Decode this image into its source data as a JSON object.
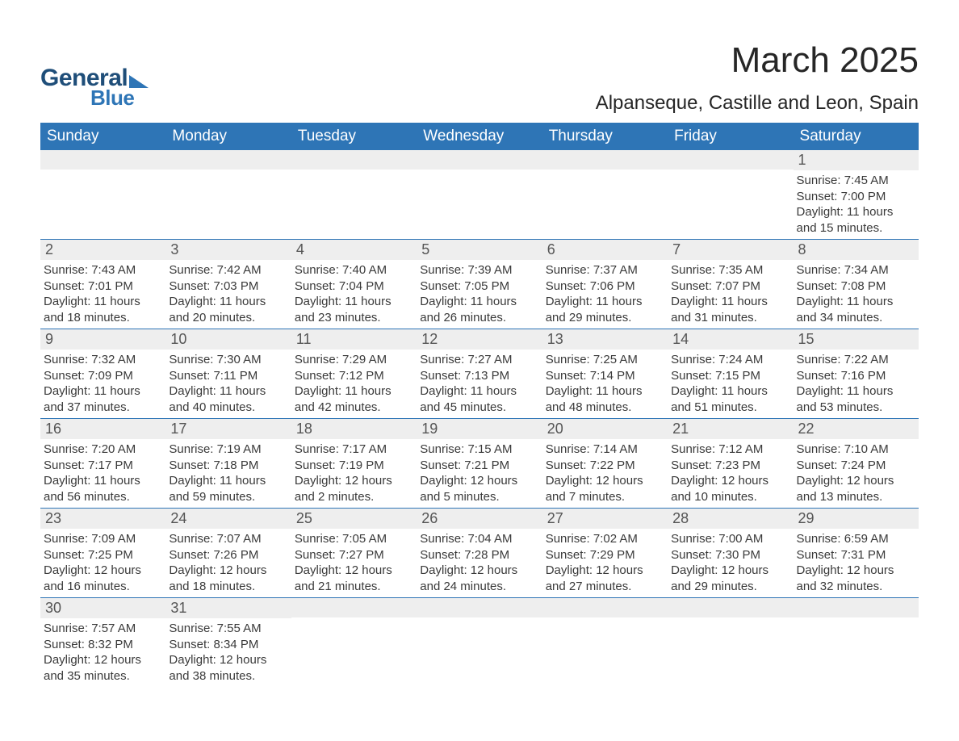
{
  "brand": {
    "general": "General",
    "blue": "Blue"
  },
  "title": "March 2025",
  "location": "Alpanseque, Castille and Leon, Spain",
  "headers": [
    "Sunday",
    "Monday",
    "Tuesday",
    "Wednesday",
    "Thursday",
    "Friday",
    "Saturday"
  ],
  "colors": {
    "header_bg": "#2e75b6",
    "header_text": "#ffffff",
    "daynum_bg": "#eeeeee",
    "row_border": "#2e75b6",
    "logo_dark": "#1f4e79",
    "logo_light": "#2e75b6",
    "body_text": "#3a3a3a",
    "title_text": "#262626",
    "background": "#ffffff"
  },
  "typography": {
    "title_fontsize": 44,
    "location_fontsize": 24,
    "header_fontsize": 19,
    "daynum_fontsize": 18,
    "content_fontsize": 15
  },
  "layout": {
    "columns": 7,
    "rows": 6,
    "cell_border_bottom": true
  },
  "weeks": [
    [
      {
        "n": "",
        "sunrise": "",
        "sunset": "",
        "daylight": ""
      },
      {
        "n": "",
        "sunrise": "",
        "sunset": "",
        "daylight": ""
      },
      {
        "n": "",
        "sunrise": "",
        "sunset": "",
        "daylight": ""
      },
      {
        "n": "",
        "sunrise": "",
        "sunset": "",
        "daylight": ""
      },
      {
        "n": "",
        "sunrise": "",
        "sunset": "",
        "daylight": ""
      },
      {
        "n": "",
        "sunrise": "",
        "sunset": "",
        "daylight": ""
      },
      {
        "n": "1",
        "sunrise": "Sunrise: 7:45 AM",
        "sunset": "Sunset: 7:00 PM",
        "daylight": "Daylight: 11 hours and 15 minutes."
      }
    ],
    [
      {
        "n": "2",
        "sunrise": "Sunrise: 7:43 AM",
        "sunset": "Sunset: 7:01 PM",
        "daylight": "Daylight: 11 hours and 18 minutes."
      },
      {
        "n": "3",
        "sunrise": "Sunrise: 7:42 AM",
        "sunset": "Sunset: 7:03 PM",
        "daylight": "Daylight: 11 hours and 20 minutes."
      },
      {
        "n": "4",
        "sunrise": "Sunrise: 7:40 AM",
        "sunset": "Sunset: 7:04 PM",
        "daylight": "Daylight: 11 hours and 23 minutes."
      },
      {
        "n": "5",
        "sunrise": "Sunrise: 7:39 AM",
        "sunset": "Sunset: 7:05 PM",
        "daylight": "Daylight: 11 hours and 26 minutes."
      },
      {
        "n": "6",
        "sunrise": "Sunrise: 7:37 AM",
        "sunset": "Sunset: 7:06 PM",
        "daylight": "Daylight: 11 hours and 29 minutes."
      },
      {
        "n": "7",
        "sunrise": "Sunrise: 7:35 AM",
        "sunset": "Sunset: 7:07 PM",
        "daylight": "Daylight: 11 hours and 31 minutes."
      },
      {
        "n": "8",
        "sunrise": "Sunrise: 7:34 AM",
        "sunset": "Sunset: 7:08 PM",
        "daylight": "Daylight: 11 hours and 34 minutes."
      }
    ],
    [
      {
        "n": "9",
        "sunrise": "Sunrise: 7:32 AM",
        "sunset": "Sunset: 7:09 PM",
        "daylight": "Daylight: 11 hours and 37 minutes."
      },
      {
        "n": "10",
        "sunrise": "Sunrise: 7:30 AM",
        "sunset": "Sunset: 7:11 PM",
        "daylight": "Daylight: 11 hours and 40 minutes."
      },
      {
        "n": "11",
        "sunrise": "Sunrise: 7:29 AM",
        "sunset": "Sunset: 7:12 PM",
        "daylight": "Daylight: 11 hours and 42 minutes."
      },
      {
        "n": "12",
        "sunrise": "Sunrise: 7:27 AM",
        "sunset": "Sunset: 7:13 PM",
        "daylight": "Daylight: 11 hours and 45 minutes."
      },
      {
        "n": "13",
        "sunrise": "Sunrise: 7:25 AM",
        "sunset": "Sunset: 7:14 PM",
        "daylight": "Daylight: 11 hours and 48 minutes."
      },
      {
        "n": "14",
        "sunrise": "Sunrise: 7:24 AM",
        "sunset": "Sunset: 7:15 PM",
        "daylight": "Daylight: 11 hours and 51 minutes."
      },
      {
        "n": "15",
        "sunrise": "Sunrise: 7:22 AM",
        "sunset": "Sunset: 7:16 PM",
        "daylight": "Daylight: 11 hours and 53 minutes."
      }
    ],
    [
      {
        "n": "16",
        "sunrise": "Sunrise: 7:20 AM",
        "sunset": "Sunset: 7:17 PM",
        "daylight": "Daylight: 11 hours and 56 minutes."
      },
      {
        "n": "17",
        "sunrise": "Sunrise: 7:19 AM",
        "sunset": "Sunset: 7:18 PM",
        "daylight": "Daylight: 11 hours and 59 minutes."
      },
      {
        "n": "18",
        "sunrise": "Sunrise: 7:17 AM",
        "sunset": "Sunset: 7:19 PM",
        "daylight": "Daylight: 12 hours and 2 minutes."
      },
      {
        "n": "19",
        "sunrise": "Sunrise: 7:15 AM",
        "sunset": "Sunset: 7:21 PM",
        "daylight": "Daylight: 12 hours and 5 minutes."
      },
      {
        "n": "20",
        "sunrise": "Sunrise: 7:14 AM",
        "sunset": "Sunset: 7:22 PM",
        "daylight": "Daylight: 12 hours and 7 minutes."
      },
      {
        "n": "21",
        "sunrise": "Sunrise: 7:12 AM",
        "sunset": "Sunset: 7:23 PM",
        "daylight": "Daylight: 12 hours and 10 minutes."
      },
      {
        "n": "22",
        "sunrise": "Sunrise: 7:10 AM",
        "sunset": "Sunset: 7:24 PM",
        "daylight": "Daylight: 12 hours and 13 minutes."
      }
    ],
    [
      {
        "n": "23",
        "sunrise": "Sunrise: 7:09 AM",
        "sunset": "Sunset: 7:25 PM",
        "daylight": "Daylight: 12 hours and 16 minutes."
      },
      {
        "n": "24",
        "sunrise": "Sunrise: 7:07 AM",
        "sunset": "Sunset: 7:26 PM",
        "daylight": "Daylight: 12 hours and 18 minutes."
      },
      {
        "n": "25",
        "sunrise": "Sunrise: 7:05 AM",
        "sunset": "Sunset: 7:27 PM",
        "daylight": "Daylight: 12 hours and 21 minutes."
      },
      {
        "n": "26",
        "sunrise": "Sunrise: 7:04 AM",
        "sunset": "Sunset: 7:28 PM",
        "daylight": "Daylight: 12 hours and 24 minutes."
      },
      {
        "n": "27",
        "sunrise": "Sunrise: 7:02 AM",
        "sunset": "Sunset: 7:29 PM",
        "daylight": "Daylight: 12 hours and 27 minutes."
      },
      {
        "n": "28",
        "sunrise": "Sunrise: 7:00 AM",
        "sunset": "Sunset: 7:30 PM",
        "daylight": "Daylight: 12 hours and 29 minutes."
      },
      {
        "n": "29",
        "sunrise": "Sunrise: 6:59 AM",
        "sunset": "Sunset: 7:31 PM",
        "daylight": "Daylight: 12 hours and 32 minutes."
      }
    ],
    [
      {
        "n": "30",
        "sunrise": "Sunrise: 7:57 AM",
        "sunset": "Sunset: 8:32 PM",
        "daylight": "Daylight: 12 hours and 35 minutes."
      },
      {
        "n": "31",
        "sunrise": "Sunrise: 7:55 AM",
        "sunset": "Sunset: 8:34 PM",
        "daylight": "Daylight: 12 hours and 38 minutes."
      },
      {
        "n": "",
        "sunrise": "",
        "sunset": "",
        "daylight": ""
      },
      {
        "n": "",
        "sunrise": "",
        "sunset": "",
        "daylight": ""
      },
      {
        "n": "",
        "sunrise": "",
        "sunset": "",
        "daylight": ""
      },
      {
        "n": "",
        "sunrise": "",
        "sunset": "",
        "daylight": ""
      },
      {
        "n": "",
        "sunrise": "",
        "sunset": "",
        "daylight": ""
      }
    ]
  ]
}
